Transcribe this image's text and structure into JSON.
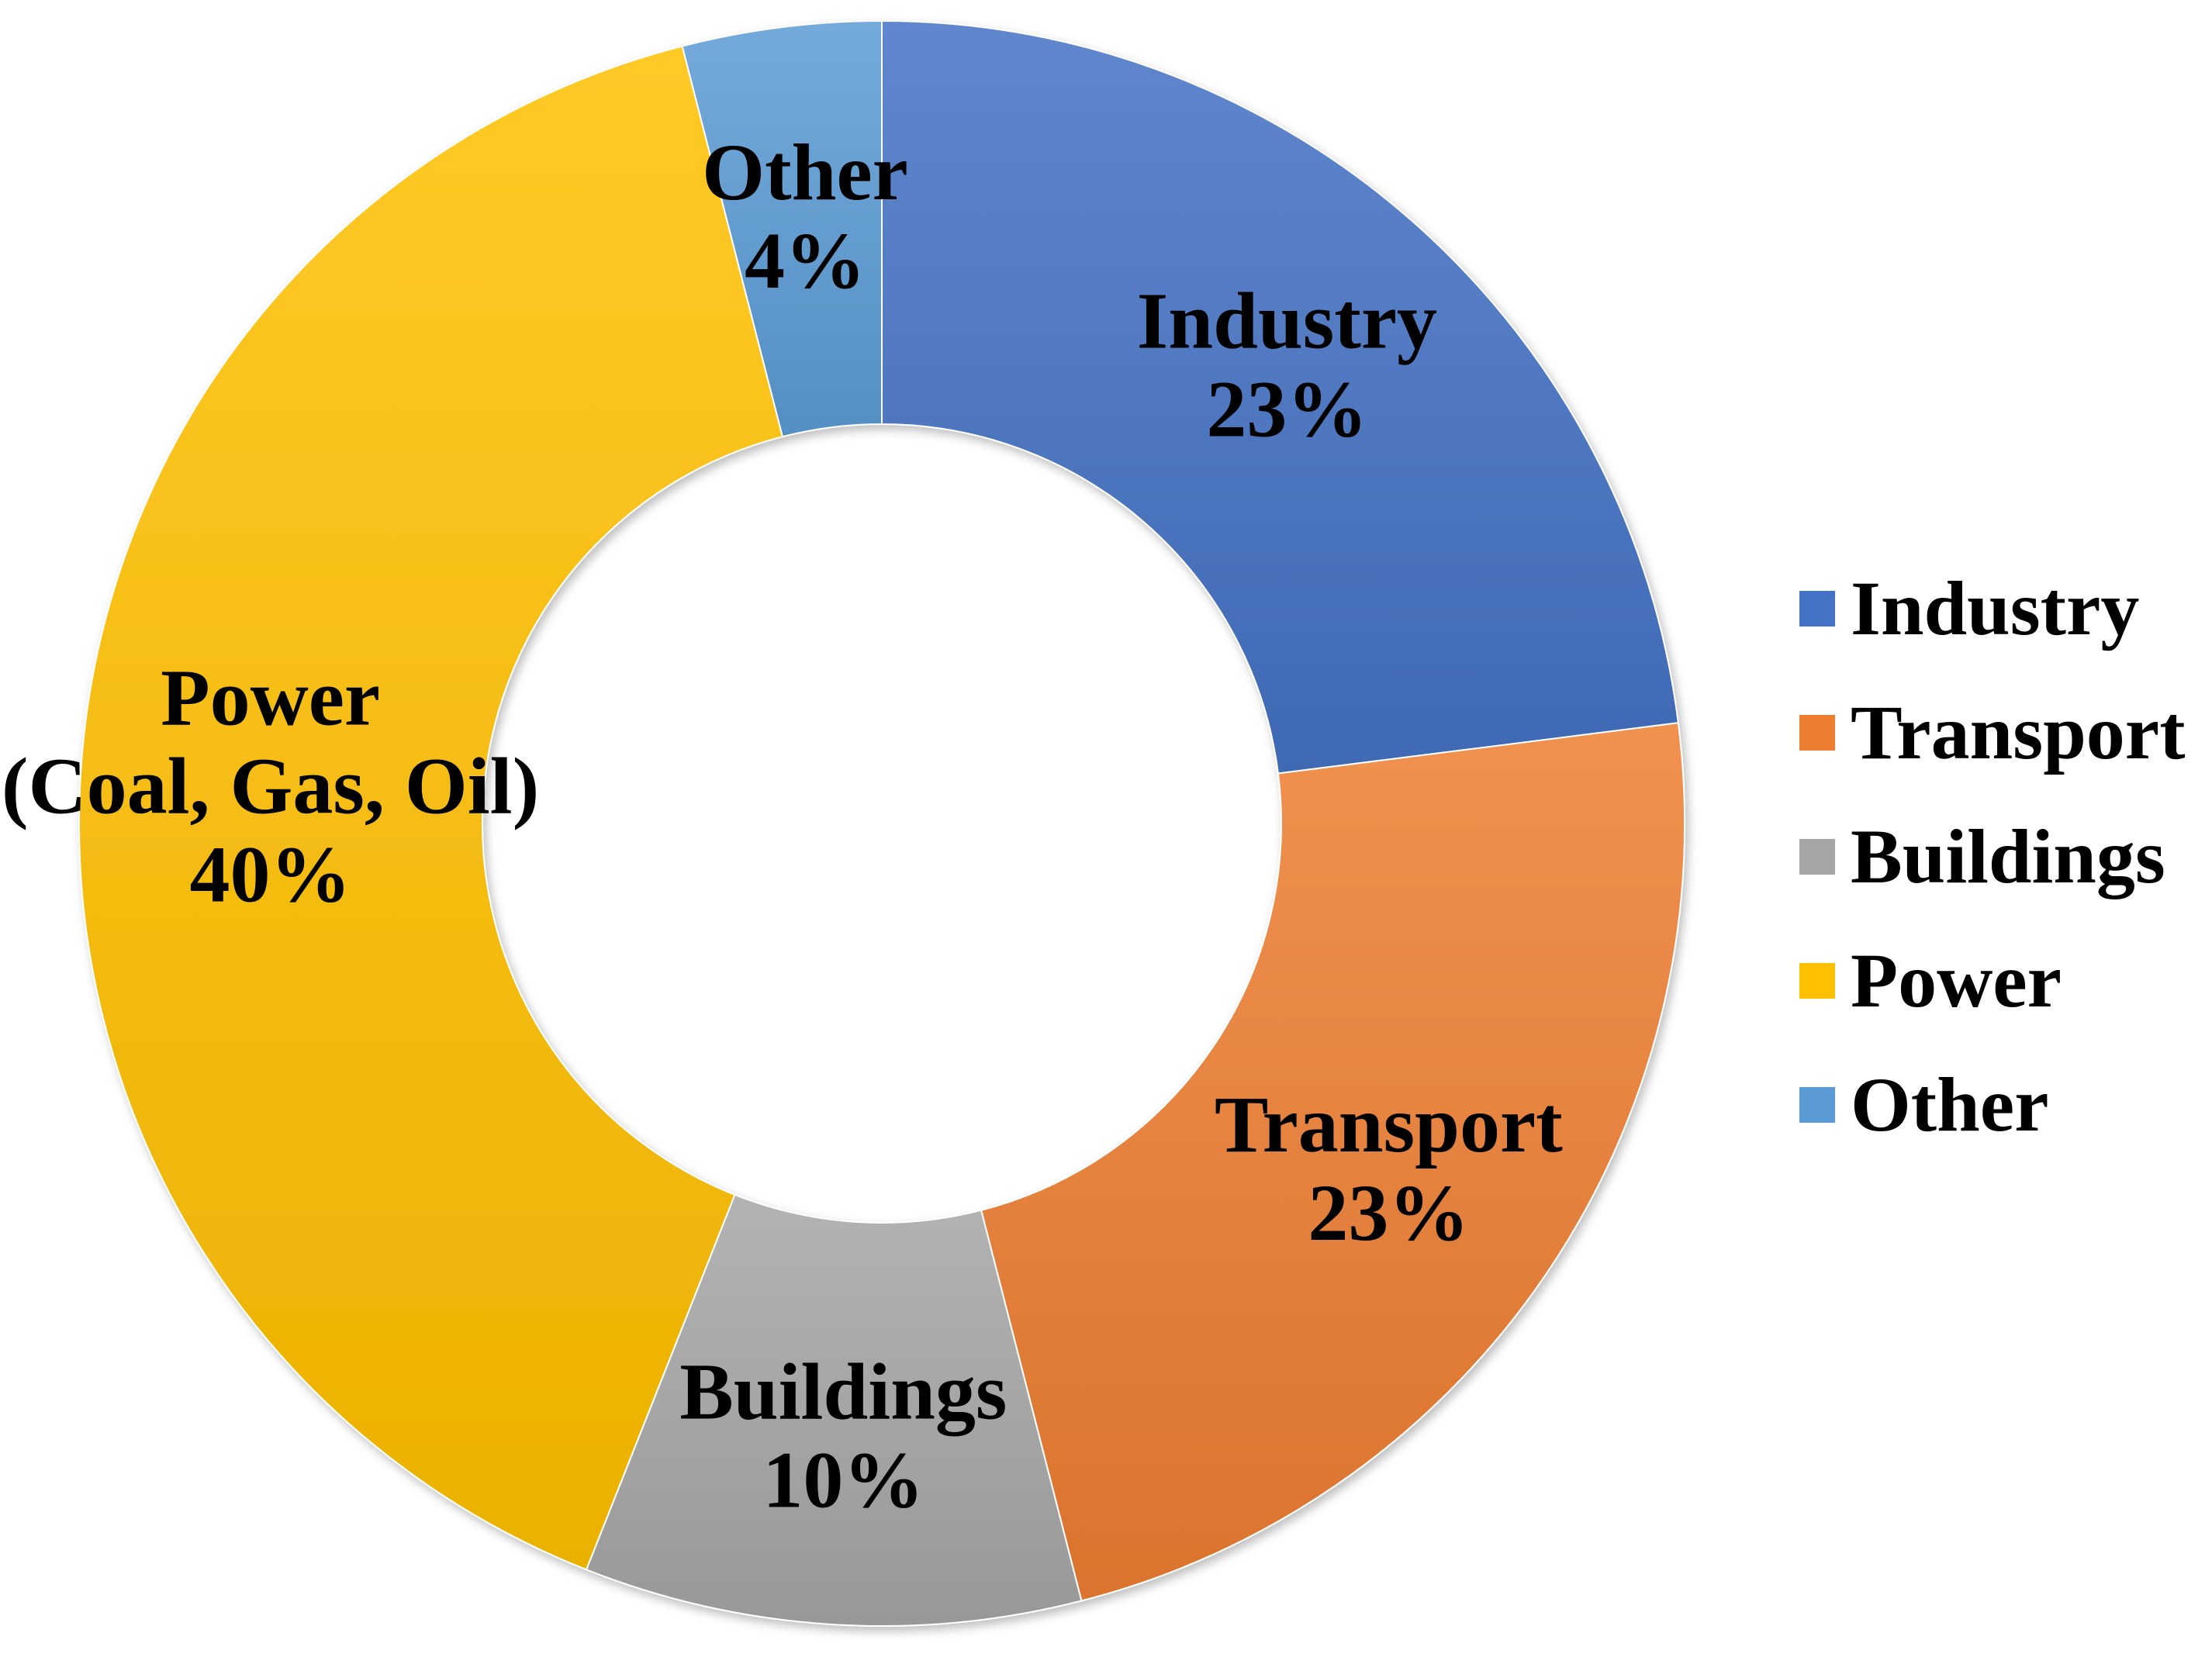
{
  "chart_data": {
    "type": "pie",
    "variant": "donut",
    "title": "",
    "categories": [
      "Industry",
      "Transport",
      "Buildings",
      "Power",
      "Other"
    ],
    "values": [
      23,
      23,
      10,
      40,
      4
    ],
    "unit": "%",
    "slice_labels": [
      {
        "lines": [
          "Industry",
          "23%"
        ]
      },
      {
        "lines": [
          "Transport",
          "23%"
        ]
      },
      {
        "lines": [
          "Buildings",
          "10%"
        ]
      },
      {
        "lines": [
          "Power",
          "(Coal, Gas, Oil)",
          "40%"
        ]
      },
      {
        "lines": [
          "Other",
          "4%"
        ]
      }
    ],
    "colors": [
      "#4472C4",
      "#ED7D31",
      "#A5A5A5",
      "#FFC000",
      "#5B9BD5"
    ],
    "legend": {
      "placement": "right",
      "entries": [
        "Industry",
        "Transport",
        "Buildings",
        "Power",
        "Other"
      ]
    },
    "start_angle": "12 o'clock",
    "direction": "clockwise"
  }
}
